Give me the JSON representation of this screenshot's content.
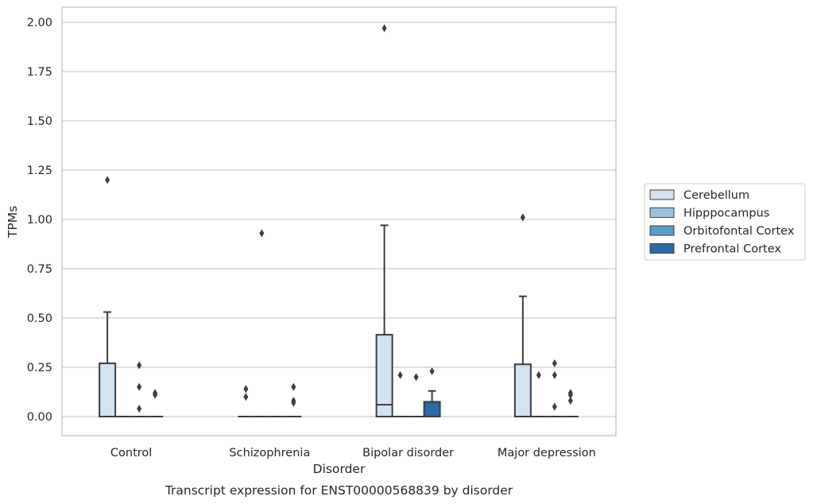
{
  "chart_data": {
    "type": "box",
    "title": "Transcript expression for ENST00000568839 by disorder",
    "xlabel": "Disorder",
    "ylabel": "TPMs",
    "ylim": [
      -0.1,
      2.07
    ],
    "yticks": [
      "0.00",
      "0.25",
      "0.50",
      "0.75",
      "1.00",
      "1.25",
      "1.50",
      "1.75",
      "2.00"
    ],
    "grid": true,
    "legend_position": "right",
    "categories": [
      "Control",
      "Schizophrenia",
      "Bipolar disorder",
      "Major depression"
    ],
    "series": [
      {
        "name": "Cerebellum",
        "color": "#d3e3f2",
        "boxes": [
          {
            "q1": 0,
            "median": 0,
            "q3": 0.27,
            "whisker_low": 0,
            "whisker_high": 0.53,
            "outliers": [
              1.2
            ]
          },
          {
            "q1": 0,
            "median": 0,
            "q3": 0,
            "whisker_low": 0,
            "whisker_high": 0,
            "outliers": [
              0.1,
              0.14
            ]
          },
          {
            "q1": 0,
            "median": 0.06,
            "q3": 0.415,
            "whisker_low": 0,
            "whisker_high": 0.97,
            "outliers": [
              1.97
            ]
          },
          {
            "q1": 0,
            "median": 0,
            "q3": 0.265,
            "whisker_low": 0,
            "whisker_high": 0.61,
            "outliers": [
              1.01
            ]
          }
        ]
      },
      {
        "name": "Hipppocampus",
        "color": "#9dc4de",
        "boxes": [
          {
            "q1": 0,
            "median": 0,
            "q3": 0,
            "whisker_low": 0,
            "whisker_high": 0,
            "outliers": []
          },
          {
            "q1": 0,
            "median": 0,
            "q3": 0,
            "whisker_low": 0,
            "whisker_high": 0,
            "outliers": [
              0.93
            ]
          },
          {
            "q1": 0,
            "median": 0,
            "q3": 0,
            "whisker_low": 0,
            "whisker_high": 0,
            "outliers": [
              0.21
            ]
          },
          {
            "q1": 0,
            "median": 0,
            "q3": 0,
            "whisker_low": 0,
            "whisker_high": 0,
            "outliers": [
              0.21
            ]
          }
        ]
      },
      {
        "name": "Orbitofontal Cortex",
        "color": "#5b9bc8",
        "boxes": [
          {
            "q1": 0,
            "median": 0,
            "q3": 0,
            "whisker_low": 0,
            "whisker_high": 0,
            "outliers": [
              0.04,
              0.15,
              0.26
            ]
          },
          {
            "q1": 0,
            "median": 0,
            "q3": 0,
            "whisker_low": 0,
            "whisker_high": 0,
            "outliers": []
          },
          {
            "q1": 0,
            "median": 0,
            "q3": 0,
            "whisker_low": 0,
            "whisker_high": 0,
            "outliers": [
              0.2
            ]
          },
          {
            "q1": 0,
            "median": 0,
            "q3": 0,
            "whisker_low": 0,
            "whisker_high": 0,
            "outliers": [
              0.05,
              0.21,
              0.27
            ]
          }
        ]
      },
      {
        "name": "Prefrontal Cortex",
        "color": "#2c6aa8",
        "boxes": [
          {
            "q1": 0,
            "median": 0,
            "q3": 0,
            "whisker_low": 0,
            "whisker_high": 0,
            "outliers": [
              0.11,
              0.12
            ]
          },
          {
            "q1": 0,
            "median": 0,
            "q3": 0,
            "whisker_low": 0,
            "whisker_high": 0,
            "outliers": [
              0.07,
              0.08,
              0.15
            ]
          },
          {
            "q1": 0,
            "median": 0,
            "q3": 0.075,
            "whisker_low": 0,
            "whisker_high": 0.13,
            "outliers": [
              0.23
            ]
          },
          {
            "q1": 0,
            "median": 0,
            "q3": 0,
            "whisker_low": 0,
            "whisker_high": 0,
            "outliers": [
              0.08,
              0.11,
              0.12
            ]
          }
        ]
      }
    ]
  }
}
